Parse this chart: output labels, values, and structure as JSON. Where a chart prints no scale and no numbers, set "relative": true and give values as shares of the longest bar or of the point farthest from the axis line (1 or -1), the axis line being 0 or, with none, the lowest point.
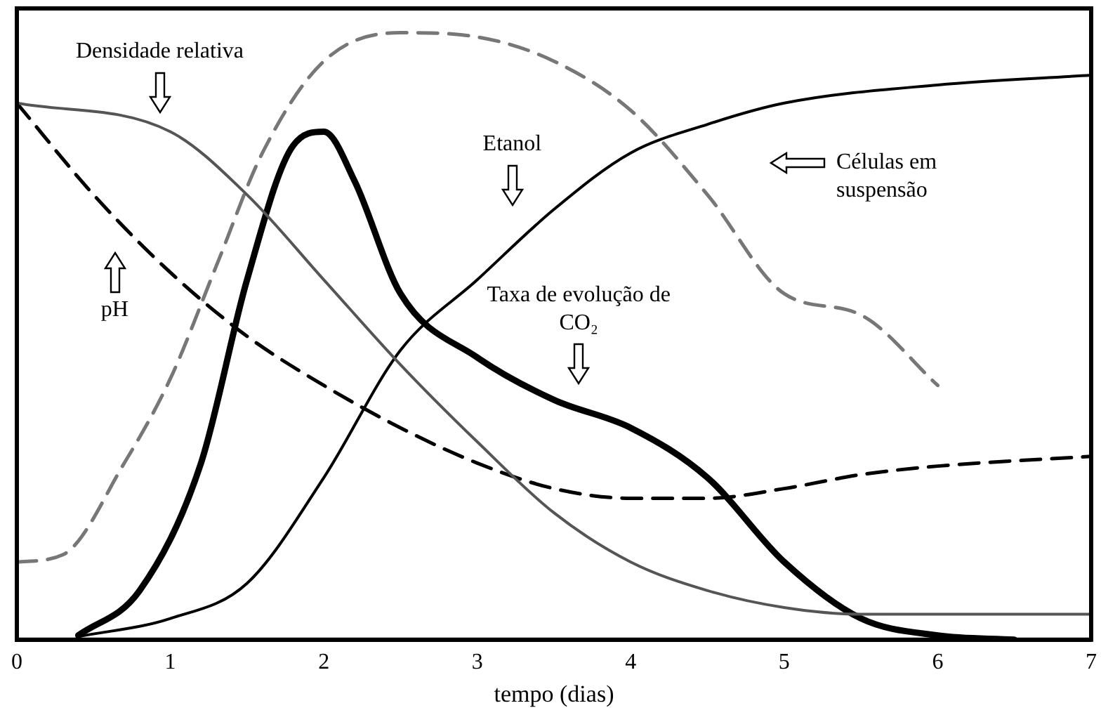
{
  "chart_data": {
    "type": "line",
    "relative": true,
    "xlabel": "tempo (dias)",
    "xlim": [
      0,
      7
    ],
    "xticks": [
      0,
      1,
      2,
      3,
      4,
      5,
      6,
      7
    ],
    "grid": false,
    "legend": false,
    "marker": "none",
    "annotations": [
      "Densidade relativa",
      "pH",
      "Células em suspensão",
      "Etanol",
      "Taxa de evolução de CO₂"
    ],
    "series": [
      {
        "color": "#555555",
        "line_style": "solid",
        "x": [
          0,
          1,
          1.5,
          2,
          2.5,
          3,
          3.5,
          4,
          4.5,
          5,
          5.5,
          6,
          7
        ],
        "values": [
          0.884,
          0.837,
          0.733,
          0.593,
          0.453,
          0.326,
          0.209,
          0.128,
          0.081,
          0.053,
          0.042,
          0.042,
          0.042
        ]
      },
      {
        "color": "#000000",
        "line_style": "dashed",
        "x": [
          0,
          0.5,
          1,
          1.5,
          2,
          2.5,
          3,
          3.5,
          4,
          4.5,
          5,
          5.5,
          6,
          7
        ],
        "values": [
          0.884,
          0.733,
          0.605,
          0.5,
          0.419,
          0.349,
          0.291,
          0.249,
          0.233,
          0.233,
          0.249,
          0.272,
          0.286,
          0.302
        ]
      },
      {
        "color": "#777777",
        "line_style": "dashed",
        "x": [
          0,
          0.3,
          0.7,
          1,
          1.3,
          1.6,
          2,
          2.5,
          3,
          3.5,
          4,
          4.5,
          5,
          5.5,
          6
        ],
        "values": [
          0.128,
          0.14,
          0.291,
          0.43,
          0.616,
          0.802,
          0.953,
          1,
          0.993,
          0.953,
          0.872,
          0.733,
          0.57,
          0.535,
          0.419
        ]
      },
      {
        "color": "#000000",
        "line_style": "solid",
        "x": [
          0.4,
          1,
          1.5,
          2,
          2.5,
          3,
          3.5,
          4,
          4.5,
          5,
          6,
          7
        ],
        "values": [
          0.005,
          0.035,
          0.093,
          0.267,
          0.477,
          0.593,
          0.709,
          0.802,
          0.849,
          0.884,
          0.914,
          0.93
        ]
      },
      {
        "color": "#000000",
        "line_style": "solid",
        "x": [
          0.4,
          0.8,
          1.2,
          1.5,
          1.8,
          2,
          2.2,
          2.5,
          3,
          3.5,
          4,
          4.5,
          5,
          5.5,
          6,
          6.5
        ],
        "values": [
          0.007,
          0.081,
          0.291,
          0.593,
          0.814,
          0.837,
          0.756,
          0.57,
          0.465,
          0.395,
          0.349,
          0.267,
          0.128,
          0.035,
          0.007,
          0
        ]
      }
    ]
  }
}
